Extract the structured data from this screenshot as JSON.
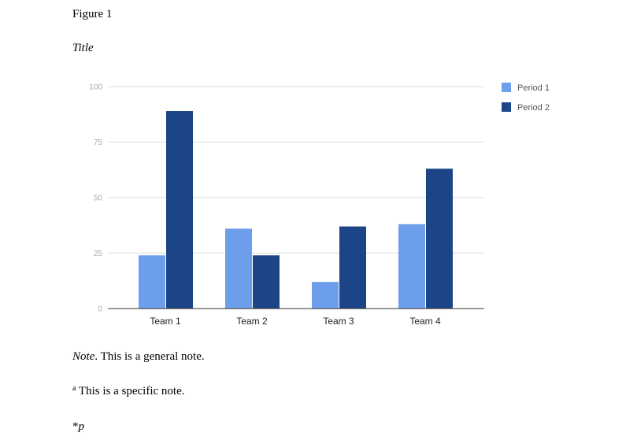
{
  "figure_label": "Figure 1",
  "title": "Title",
  "chart_data": {
    "type": "bar",
    "categories": [
      "Team 1",
      "Team 2",
      "Team 3",
      "Team 4"
    ],
    "series": [
      {
        "name": "Period 1",
        "color": "#6d9eeb",
        "values": [
          24,
          36,
          12,
          38
        ]
      },
      {
        "name": "Period 2",
        "color": "#1c4587",
        "values": [
          89,
          24,
          37,
          63
        ]
      }
    ],
    "ylim": [
      0,
      100
    ],
    "yticks": [
      0,
      25,
      50,
      75,
      100
    ],
    "grid": true,
    "legend": "right"
  },
  "notes": {
    "general": {
      "label": "Note",
      "text": ". This is a general note."
    },
    "specific": {
      "marker": "a",
      "text": " This is a specific note."
    },
    "probability": {
      "marker": "*",
      "symbol": "p"
    }
  }
}
